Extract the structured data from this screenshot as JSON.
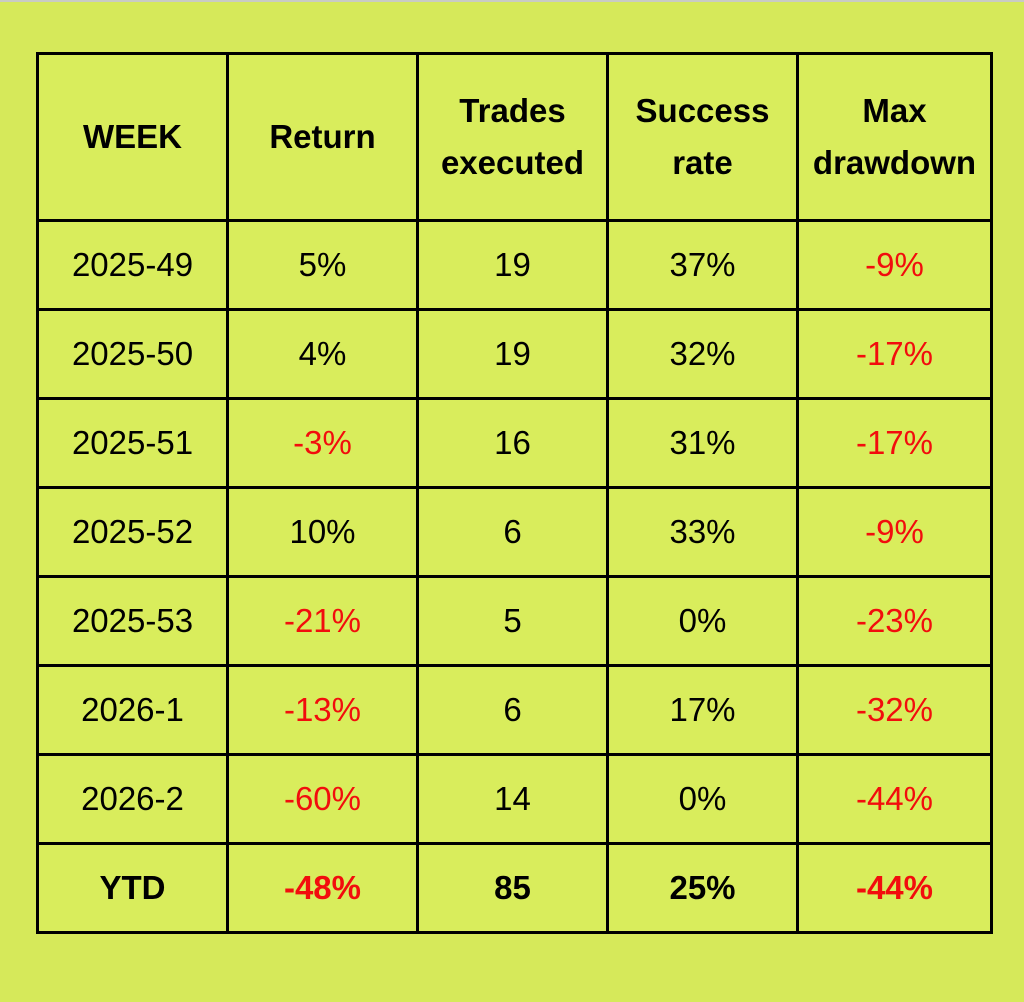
{
  "colors": {
    "background": "#d6e95a",
    "negative": "#f20d0d",
    "text": "#000000",
    "border": "#000000"
  },
  "chart_data": {
    "type": "table",
    "columns": [
      {
        "key": "week",
        "lines": [
          "WEEK"
        ]
      },
      {
        "key": "return",
        "lines": [
          "Return"
        ]
      },
      {
        "key": "trades",
        "lines": [
          "Trades",
          "executed"
        ]
      },
      {
        "key": "success",
        "lines": [
          "Success",
          "rate"
        ]
      },
      {
        "key": "drawdown",
        "lines": [
          "Max",
          "drawdown"
        ]
      }
    ],
    "rows": [
      {
        "week": "2025-49",
        "return": "5%",
        "trades": "19",
        "success": "37%",
        "drawdown": "-9%"
      },
      {
        "week": "2025-50",
        "return": "4%",
        "trades": "19",
        "success": "32%",
        "drawdown": "-17%"
      },
      {
        "week": "2025-51",
        "return": "-3%",
        "trades": "16",
        "success": "31%",
        "drawdown": "-17%"
      },
      {
        "week": "2025-52",
        "return": "10%",
        "trades": "6",
        "success": "33%",
        "drawdown": "-9%"
      },
      {
        "week": "2025-53",
        "return": "-21%",
        "trades": "5",
        "success": "0%",
        "drawdown": "-23%"
      },
      {
        "week": "2026-1",
        "return": "-13%",
        "trades": "6",
        "success": "17%",
        "drawdown": "-32%"
      },
      {
        "week": "2026-2",
        "return": "-60%",
        "trades": "14",
        "success": "0%",
        "drawdown": "-44%"
      }
    ],
    "total": {
      "week": "YTD",
      "return": "-48%",
      "trades": "85",
      "success": "25%",
      "drawdown": "-44%"
    }
  }
}
